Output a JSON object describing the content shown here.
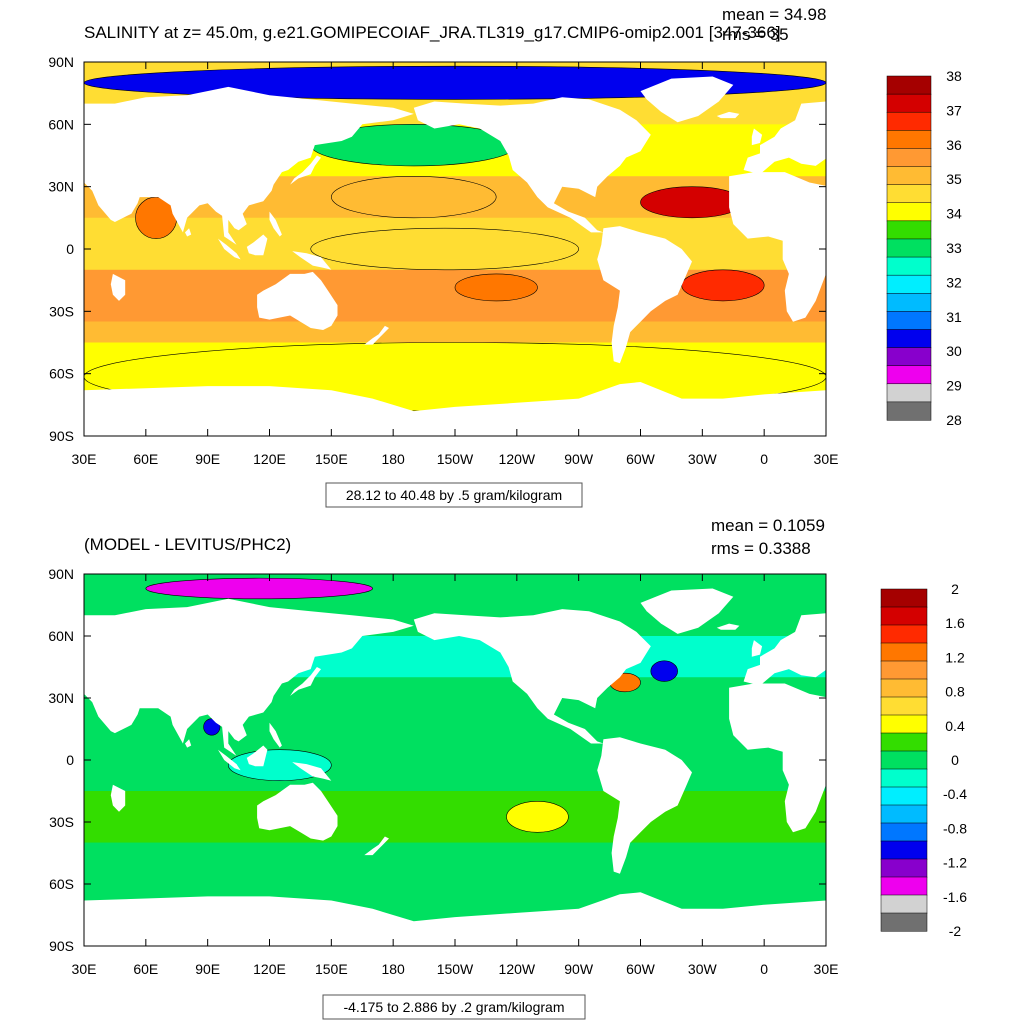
{
  "chart_data": [
    {
      "type": "heatmap",
      "title": "SALINITY at z=  45.0m, g.e21.GOMIPECOIAF_JRA.TL319_g17.CMIP6-omip2.001 [347-366]",
      "stats": {
        "mean": "mean = 34.98",
        "rms": "rms = 35"
      },
      "x_ticks": [
        "30E",
        "60E",
        "90E",
        "120E",
        "150E",
        "180",
        "150W",
        "120W",
        "90W",
        "60W",
        "30W",
        "0",
        "30E"
      ],
      "y_ticks": [
        "90N",
        "60N",
        "30N",
        "0",
        "30S",
        "60S",
        "90S"
      ],
      "xlim": [
        30,
        390
      ],
      "ylim": [
        -90,
        90
      ],
      "contour_info": "28.12 to 40.48 by .5 gram/kilogram",
      "colorbar": {
        "labels": [
          "38",
          "37",
          "36",
          "35",
          "34",
          "33",
          "32",
          "31",
          "30",
          "29",
          "28"
        ],
        "colors": [
          "#a50000",
          "#d40000",
          "#ff2a00",
          "#ff7700",
          "#ff9933",
          "#ffbb33",
          "#ffdd33",
          "#ffff00",
          "#33dd00",
          "#00e060",
          "#00ffcc",
          "#00eeff",
          "#00bbff",
          "#0077ff",
          "#0000ee",
          "#8800cc",
          "#ee00ee",
          "#d2d2d2",
          "#707070"
        ]
      },
      "regions": [
        {
          "name": "arctic",
          "lon": [
            30,
            390
          ],
          "lat": [
            72,
            88
          ],
          "value": 30.5
        },
        {
          "name": "north-pacific",
          "lon": [
            140,
            240
          ],
          "lat": [
            40,
            60
          ],
          "value": 32.8
        },
        {
          "name": "subtropical-n-pacific",
          "lon": [
            150,
            230
          ],
          "lat": [
            15,
            35
          ],
          "value": 35.0
        },
        {
          "name": "eq-pacific",
          "lon": [
            140,
            270
          ],
          "lat": [
            -10,
            10
          ],
          "value": 34.6
        },
        {
          "name": "south-pacific-max",
          "lon": [
            210,
            250
          ],
          "lat": [
            -25,
            -12
          ],
          "value": 36.6
        },
        {
          "name": "n-atlantic-max",
          "lon": [
            300,
            350
          ],
          "lat": [
            15,
            30
          ],
          "value": 37.2
        },
        {
          "name": "s-atlantic-max",
          "lon": [
            320,
            360
          ],
          "lat": [
            -25,
            -10
          ],
          "value": 36.8
        },
        {
          "name": "arabian-sea",
          "lon": [
            55,
            75
          ],
          "lat": [
            5,
            25
          ],
          "value": 36.5
        },
        {
          "name": "southern-ocean",
          "lon": [
            30,
            390
          ],
          "lat": [
            -78,
            -45
          ],
          "value": 34.2
        }
      ]
    },
    {
      "type": "heatmap",
      "title": "(MODEL - LEVITUS/PHC2)",
      "stats": {
        "mean": "mean = 0.1059",
        "rms": "rms = 0.3388"
      },
      "x_ticks": [
        "30E",
        "60E",
        "90E",
        "120E",
        "150E",
        "180",
        "150W",
        "120W",
        "90W",
        "60W",
        "30W",
        "0",
        "30E"
      ],
      "y_ticks": [
        "90N",
        "60N",
        "30N",
        "0",
        "30S",
        "60S",
        "90S"
      ],
      "xlim": [
        30,
        390
      ],
      "ylim": [
        -90,
        90
      ],
      "contour_info": "-4.175 to 2.886 by .2 gram/kilogram",
      "colorbar": {
        "labels": [
          "2",
          "1.6",
          "1.2",
          "0.8",
          "0.4",
          "0",
          "-0.4",
          "-0.8",
          "-1.2",
          "-1.6",
          "-2"
        ],
        "colors": [
          "#a50000",
          "#d40000",
          "#ff2a00",
          "#ff7700",
          "#ff9933",
          "#ffbb33",
          "#ffdd33",
          "#ffff00",
          "#33dd00",
          "#00e060",
          "#00ffcc",
          "#00eeff",
          "#00bbff",
          "#0077ff",
          "#0000ee",
          "#8800cc",
          "#ee00ee",
          "#d2d2d2",
          "#707070"
        ]
      },
      "regions": [
        {
          "name": "arctic-fresh",
          "lon": [
            60,
            170
          ],
          "lat": [
            78,
            88
          ],
          "value": -1.5
        },
        {
          "name": "gulf-stream-dipole",
          "lon": [
            305,
            318
          ],
          "lat": [
            38,
            48
          ],
          "value": -1.2
        },
        {
          "name": "gulf-stream-salty",
          "lon": [
            285,
            300
          ],
          "lat": [
            33,
            42
          ],
          "value": 1.4
        },
        {
          "name": "bay-of-bengal",
          "lon": [
            88,
            96
          ],
          "lat": [
            12,
            20
          ],
          "value": -1.0
        },
        {
          "name": "central-pacific-positive",
          "lon": [
            235,
            265
          ],
          "lat": [
            -35,
            -20
          ],
          "value": 0.5
        },
        {
          "name": "maritime-continent",
          "lon": [
            100,
            150
          ],
          "lat": [
            -10,
            5
          ],
          "value": -0.2
        }
      ]
    }
  ]
}
